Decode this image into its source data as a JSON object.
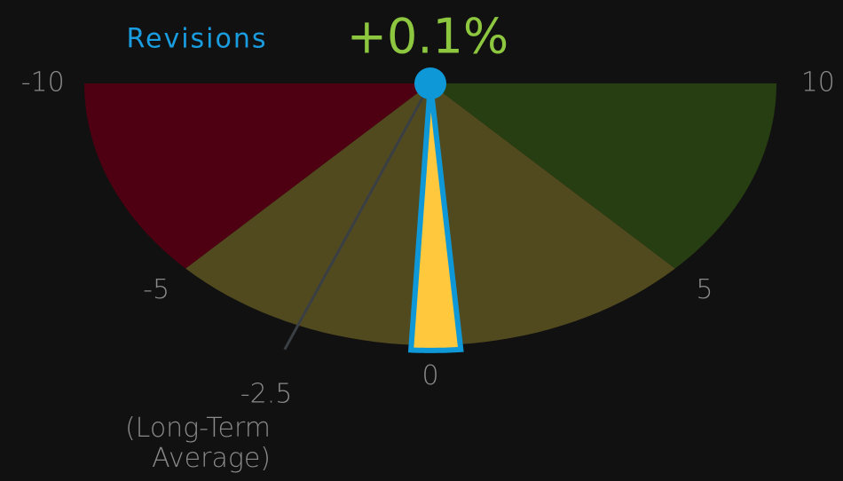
{
  "chart_data": {
    "type": "gauge",
    "title": "Revisions",
    "value": 0.1,
    "value_label": "+0.1%",
    "value_color": "#8dc63f",
    "needle_color": "#ffc83d",
    "needle_outline": "#0e98d8",
    "min": -10,
    "max": 10,
    "ticks": [
      -10,
      -5,
      0,
      5,
      10
    ],
    "bands": [
      {
        "from": -10,
        "to": -5,
        "color": "#4e0012"
      },
      {
        "from": -5,
        "to": 5,
        "color": "#524a1f"
      },
      {
        "from": 5,
        "to": 10,
        "color": "#273e12"
      }
    ],
    "average": {
      "value": -2.5,
      "label": "-2.5",
      "annotation": "(Long-Term Average)",
      "color": "#3a3f44"
    }
  }
}
